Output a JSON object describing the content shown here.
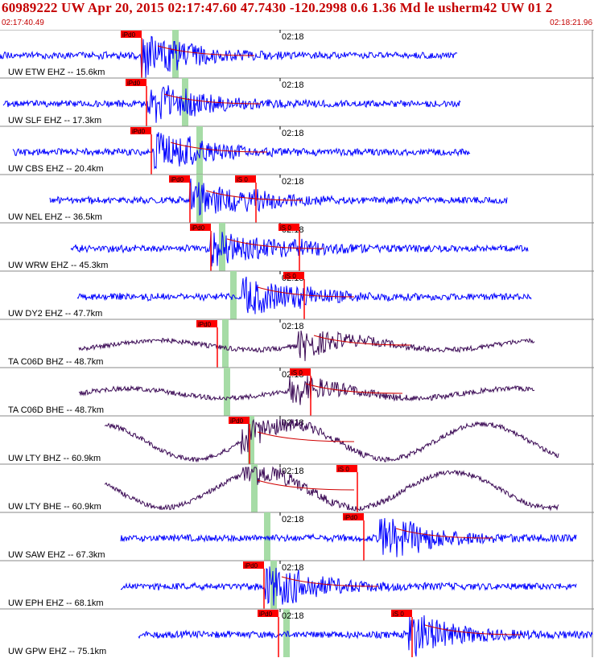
{
  "header": {
    "title": "60989222 UW Apr 20, 2015 02:17:47.60    47.7430 -120.2998  0.6 1.36 Md le usherm42 UW 01    2",
    "start_time": "02:17:40.49",
    "end_time": "02:18:21.96"
  },
  "minute_tick_label": "02:18",
  "colors": {
    "waveform_short": "#0000ff",
    "waveform_broadband": "#3b0a55",
    "synthetic": "#d00000",
    "pick_window": "#a6dca6",
    "pick_label_bg": "#ff0000",
    "separator": "#888888",
    "text": "#000000"
  },
  "traces": [
    {
      "label": "UW ETW EHZ -- 15.6km",
      "picks": [
        "iPd0"
      ]
    },
    {
      "label": "UW SLF EHZ -- 17.3km",
      "picks": [
        "iPd0"
      ]
    },
    {
      "label": "UW CBS EHZ -- 20.4km",
      "picks": [
        "iPd0"
      ]
    },
    {
      "label": "UW NEL EHZ -- 36.5km",
      "picks": [
        "iPd0",
        "iS 0"
      ]
    },
    {
      "label": "UW WRW EHZ -- 45.3km",
      "picks": [
        "iPd0",
        "iS 0"
      ]
    },
    {
      "label": "UW DY2 EHZ -- 47.7km",
      "picks": [
        "iS 0"
      ]
    },
    {
      "label": "TA C06D BHZ -- 48.7km",
      "picks": [
        "iPd0"
      ]
    },
    {
      "label": "TA C06D BHE -- 48.7km",
      "picks": [
        "iS 0"
      ]
    },
    {
      "label": "UW LTY BHZ -- 60.9km",
      "picks": [
        "iPd0"
      ]
    },
    {
      "label": "UW LTY BHE -- 60.9km",
      "picks": [
        "iS 0"
      ]
    },
    {
      "label": "UW SAW EHZ -- 67.3km",
      "picks": [
        "iPd0"
      ]
    },
    {
      "label": "UW EPH EHZ -- 68.1km",
      "picks": [
        "iPd0"
      ]
    },
    {
      "label": "UW GPW EHZ -- 75.1km",
      "picks": [
        "iPd0",
        "iS 0"
      ]
    }
  ]
}
